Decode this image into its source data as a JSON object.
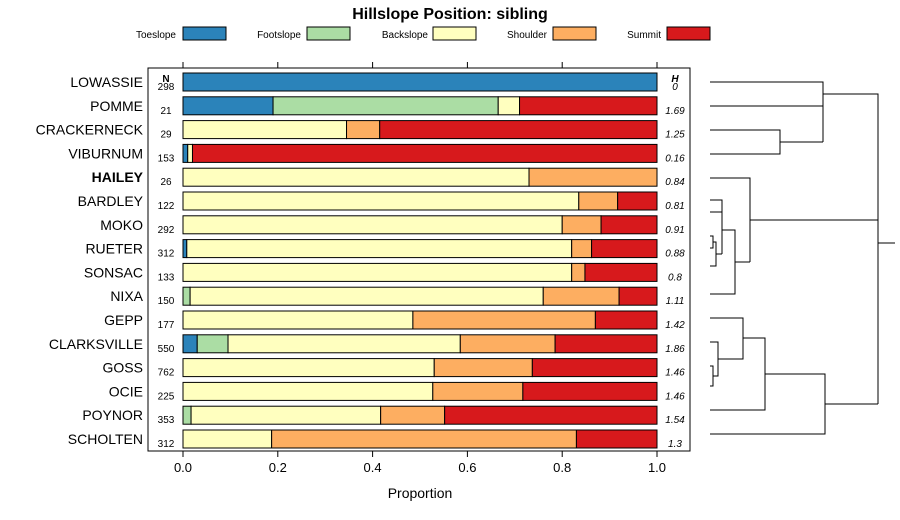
{
  "chart_data": {
    "type": "bar",
    "orientation": "horizontal",
    "stacked": true,
    "title": "Hillslope Position: sibling",
    "xlabel": "Proportion",
    "ylabel": "",
    "xlim": [
      0,
      1
    ],
    "x_ticks": [
      "0.0",
      "0.2",
      "0.4",
      "0.6",
      "0.8",
      "1.0"
    ],
    "n_header": "N",
    "h_header": "H",
    "legend": [
      {
        "name": "Toeslope",
        "color": "#2b83ba"
      },
      {
        "name": "Footslope",
        "color": "#abdda4"
      },
      {
        "name": "Backslope",
        "color": "#ffffbf"
      },
      {
        "name": "Shoulder",
        "color": "#fdae61"
      },
      {
        "name": "Summit",
        "color": "#d7191c"
      }
    ],
    "rows": [
      {
        "name": "LOWASSIE",
        "n": "298",
        "h": "0",
        "values": [
          1.0,
          0,
          0,
          0,
          0
        ]
      },
      {
        "name": "POMME",
        "n": "21",
        "h": "1.69",
        "values": [
          0.19,
          0.475,
          0.045,
          0,
          0.29
        ]
      },
      {
        "name": "CRACKERNECK",
        "n": "29",
        "h": "1.25",
        "values": [
          0,
          0,
          0.345,
          0.07,
          0.585
        ]
      },
      {
        "name": "VIBURNUM",
        "n": "153",
        "h": "0.16",
        "values": [
          0.01,
          0,
          0.01,
          0,
          0.98
        ]
      },
      {
        "name": "HAILEY",
        "n": "26",
        "h": "0.84",
        "bold": true,
        "values": [
          0,
          0,
          0.73,
          0.27,
          0
        ]
      },
      {
        "name": "BARDLEY",
        "n": "122",
        "h": "0.81",
        "values": [
          0,
          0,
          0.835,
          0.082,
          0.083
        ]
      },
      {
        "name": "MOKO",
        "n": "292",
        "h": "0.91",
        "values": [
          0,
          0,
          0.8,
          0.082,
          0.118
        ]
      },
      {
        "name": "RUETER",
        "n": "312",
        "h": "0.88",
        "values": [
          0.008,
          0,
          0.812,
          0.042,
          0.138
        ]
      },
      {
        "name": "SONSAC",
        "n": "133",
        "h": "0.8",
        "values": [
          0,
          0,
          0.82,
          0.028,
          0.152
        ]
      },
      {
        "name": "NIXA",
        "n": "150",
        "h": "1.11",
        "values": [
          0,
          0.015,
          0.745,
          0.16,
          0.08
        ]
      },
      {
        "name": "GEPP",
        "n": "177",
        "h": "1.42",
        "values": [
          0,
          0,
          0.485,
          0.385,
          0.13
        ]
      },
      {
        "name": "CLARKSVILLE",
        "n": "550",
        "h": "1.86",
        "values": [
          0.03,
          0.065,
          0.49,
          0.2,
          0.215
        ]
      },
      {
        "name": "GOSS",
        "n": "762",
        "h": "1.46",
        "values": [
          0,
          0,
          0.53,
          0.207,
          0.263
        ]
      },
      {
        "name": "OCIE",
        "n": "225",
        "h": "1.46",
        "values": [
          0,
          0,
          0.527,
          0.19,
          0.283
        ]
      },
      {
        "name": "POYNOR",
        "n": "353",
        "h": "1.54",
        "values": [
          0,
          0.017,
          0.4,
          0.135,
          0.448
        ]
      },
      {
        "name": "SCHOLTEN",
        "n": "312",
        "h": "1.3",
        "values": [
          0,
          0,
          0.187,
          0.643,
          0.17
        ]
      }
    ]
  }
}
